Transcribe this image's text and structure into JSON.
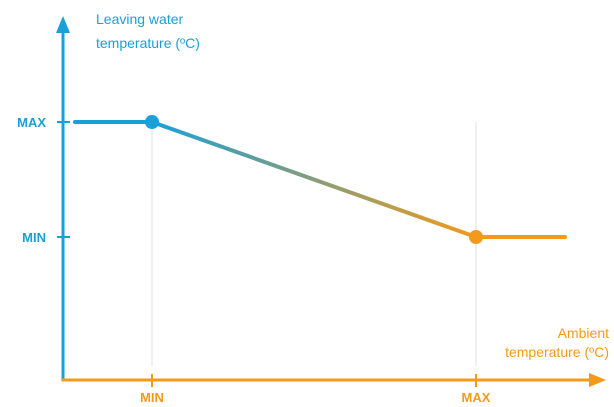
{
  "colors": {
    "blue": "#1aa0d8",
    "orange": "#f39a1a",
    "grid": "#e2e2e2"
  },
  "chart_data": {
    "type": "line",
    "title": "",
    "ylabel_lines": [
      "Leaving water",
      "temperature (ºC)"
    ],
    "xlabel_lines": [
      "Ambient",
      "temperature (ºC)"
    ],
    "x_ticks": [
      "MIN",
      "MAX"
    ],
    "y_ticks": [
      "MAX",
      "MIN"
    ],
    "grid": "vertical lines at MIN and MAX",
    "series": [
      {
        "points": [
          {
            "x": "below MIN",
            "y": "MAX"
          },
          {
            "x": "MIN",
            "y": "MAX"
          },
          {
            "x": "MAX",
            "y": "MIN"
          },
          {
            "x": "above MAX",
            "y": "MIN"
          }
        ],
        "markers": [
          "MIN",
          "MAX"
        ],
        "color_start": "#1aa0d8",
        "color_end": "#f39a1a"
      }
    ]
  }
}
